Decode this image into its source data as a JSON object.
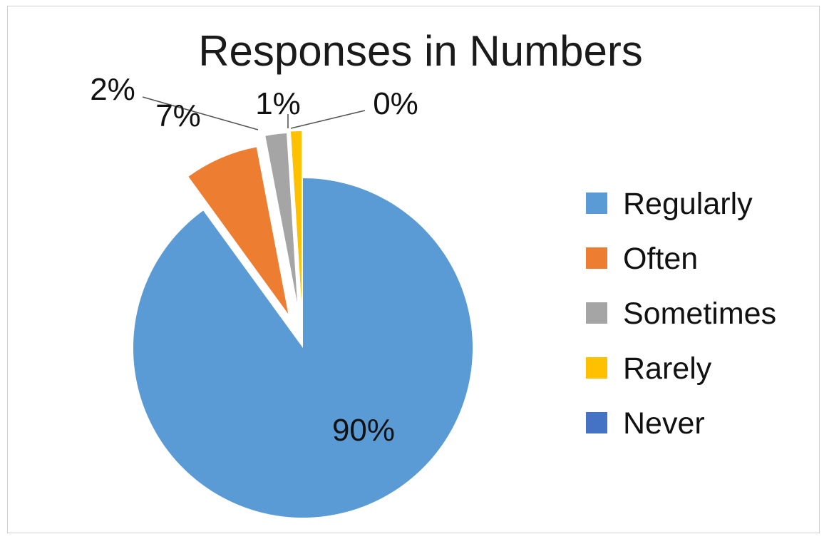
{
  "chart_data": {
    "type": "pie",
    "title": "Responses in Numbers",
    "categories": [
      "Regularly",
      "Often",
      "Sometimes",
      "Rarely",
      "Never"
    ],
    "values": [
      90,
      7,
      2,
      1,
      0
    ],
    "data_labels": [
      "90%",
      "7%",
      "2%",
      "1%",
      "0%"
    ],
    "colors": [
      "#5b9bd5",
      "#ed7d31",
      "#a5a5a5",
      "#ffc000",
      "#4472c4"
    ],
    "exploded": true,
    "legend_position": "right"
  }
}
